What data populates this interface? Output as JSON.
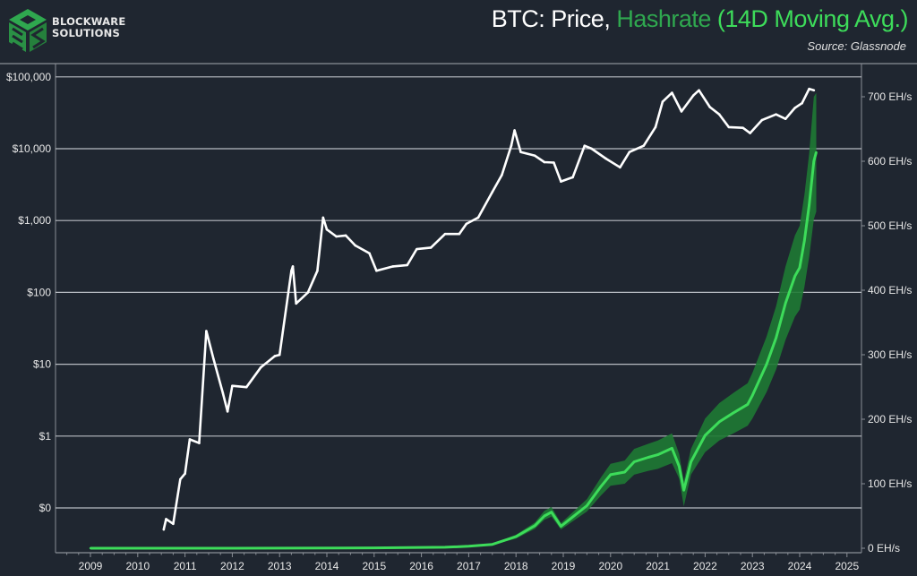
{
  "brand": {
    "line1": "BLOCKWARE",
    "line2": "SOLUTIONS"
  },
  "header": {
    "title_part1": "BTC: Price, ",
    "title_part2": "Hashrate",
    "title_part3": " (14D Moving Avg.)",
    "source": "Source: Glassnode"
  },
  "colors": {
    "background": "#1f2630",
    "price": "#ffffff",
    "hashrate_ma": "#3ddc5a",
    "hashrate_raw": "#1e7a34",
    "grid": "#b8bcc2",
    "logo": "#2fa84f"
  },
  "chart_data": {
    "type": "line",
    "title": "BTC: Price, Hashrate (14D Moving Avg.)",
    "source": "Source: Glassnode",
    "x_ticks": [
      "2009",
      "2010",
      "2011",
      "2012",
      "2013",
      "2014",
      "2015",
      "2016",
      "2017",
      "2018",
      "2019",
      "2020",
      "2021",
      "2022",
      "2023",
      "2024",
      "2025"
    ],
    "xlim": [
      2008.26,
      2025.3
    ],
    "y_left": {
      "scale": "log",
      "lim": [
        0.018,
        200000
      ],
      "ticks": [
        0.1,
        1,
        10,
        100,
        1000,
        10000,
        100000
      ],
      "tick_labels": [
        "$0",
        "$1",
        "$10",
        "$100",
        "$1,000",
        "$10,000",
        "$100,000"
      ],
      "grid": true
    },
    "y_right": {
      "scale": "linear",
      "lim": [
        0,
        765
      ],
      "ticks": [
        0,
        100,
        200,
        300,
        400,
        500,
        600,
        700
      ],
      "tick_labels": [
        "0 EH/s",
        "100 EH/s",
        "200 EH/s",
        "300 EH/s",
        "400 EH/s",
        "500 EH/s",
        "600 EH/s",
        "700 EH/s"
      ]
    },
    "price": {
      "axis": "left",
      "x": [
        2010.55,
        2010.6,
        2010.75,
        2010.9,
        2011.0,
        2011.1,
        2011.3,
        2011.45,
        2011.6,
        2011.8,
        2011.9,
        2012.0,
        2012.3,
        2012.6,
        2012.9,
        2013.0,
        2013.25,
        2013.28,
        2013.35,
        2013.6,
        2013.8,
        2013.92,
        2014.0,
        2014.2,
        2014.4,
        2014.6,
        2014.9,
        2015.05,
        2015.4,
        2015.7,
        2015.9,
        2016.2,
        2016.5,
        2016.8,
        2016.95,
        2017.2,
        2017.5,
        2017.7,
        2017.9,
        2017.97,
        2018.1,
        2018.4,
        2018.6,
        2018.8,
        2018.95,
        2019.2,
        2019.45,
        2019.6,
        2019.9,
        2020.2,
        2020.4,
        2020.7,
        2020.95,
        2021.1,
        2021.3,
        2021.5,
        2021.75,
        2021.87,
        2022.1,
        2022.3,
        2022.5,
        2022.8,
        2022.95,
        2023.2,
        2023.5,
        2023.7,
        2023.9,
        2024.05,
        2024.2,
        2024.3
      ],
      "y": [
        0.05,
        0.07,
        0.06,
        0.25,
        0.3,
        0.9,
        0.8,
        29,
        12,
        4,
        2.2,
        5,
        4.8,
        9,
        13,
        13.5,
        200,
        230,
        70,
        100,
        200,
        1100,
        750,
        600,
        620,
        450,
        350,
        200,
        230,
        240,
        400,
        420,
        650,
        650,
        900,
        1100,
        2500,
        4300,
        11000,
        18000,
        9000,
        8000,
        6500,
        6400,
        3500,
        4000,
        11000,
        10000,
        7300,
        5500,
        9000,
        11000,
        20000,
        45000,
        60000,
        33000,
        55000,
        65000,
        38000,
        30000,
        20000,
        19500,
        16500,
        25000,
        30000,
        26000,
        37000,
        43000,
        68000,
        65000
      ]
    },
    "hashrate_ma": {
      "axis": "right",
      "x": [
        2009.0,
        2012.0,
        2015.0,
        2016.5,
        2017.0,
        2017.5,
        2018.0,
        2018.4,
        2018.6,
        2018.75,
        2018.95,
        2019.5,
        2019.8,
        2020.0,
        2020.3,
        2020.5,
        2020.8,
        2021.0,
        2021.3,
        2021.45,
        2021.55,
        2021.7,
        2022.0,
        2022.3,
        2022.6,
        2022.9,
        2023.0,
        2023.3,
        2023.5,
        2023.7,
        2023.9,
        2024.0,
        2024.1,
        2024.2,
        2024.3,
        2024.35
      ],
      "y": [
        0,
        0,
        0.5,
        1.5,
        3,
        6,
        18,
        35,
        50,
        56,
        34,
        66,
        96,
        114,
        118,
        134,
        141,
        145,
        155,
        127,
        90,
        134,
        175,
        196,
        210,
        223,
        237,
        285,
        326,
        380,
        422,
        435,
        477,
        532,
        600,
        614
      ]
    },
    "hashrate_raw_range": {
      "axis": "right",
      "x": [
        2009.0,
        2012.0,
        2015.0,
        2016.5,
        2017.0,
        2017.5,
        2018.0,
        2018.4,
        2018.6,
        2018.75,
        2018.95,
        2019.5,
        2019.8,
        2020.0,
        2020.3,
        2020.5,
        2020.8,
        2021.0,
        2021.3,
        2021.45,
        2021.55,
        2021.7,
        2022.0,
        2022.3,
        2022.6,
        2022.9,
        2023.0,
        2023.3,
        2023.5,
        2023.7,
        2023.9,
        2024.0,
        2024.1,
        2024.2,
        2024.3,
        2024.35
      ],
      "low": [
        0,
        0,
        0.4,
        1.2,
        2.5,
        5,
        15,
        30,
        44,
        49,
        29,
        57,
        82,
        97,
        100,
        114,
        120,
        123,
        132,
        108,
        65,
        114,
        149,
        167,
        178,
        190,
        201,
        242,
        277,
        323,
        359,
        370,
        405,
        452,
        510,
        522
      ],
      "high": [
        0,
        0,
        0.6,
        1.8,
        3.5,
        7,
        21,
        40,
        58,
        64,
        39,
        76,
        110,
        131,
        136,
        154,
        162,
        167,
        178,
        146,
        104,
        154,
        201,
        225,
        241,
        256,
        272,
        328,
        375,
        437,
        485,
        500,
        548,
        612,
        700,
        706
      ]
    }
  }
}
